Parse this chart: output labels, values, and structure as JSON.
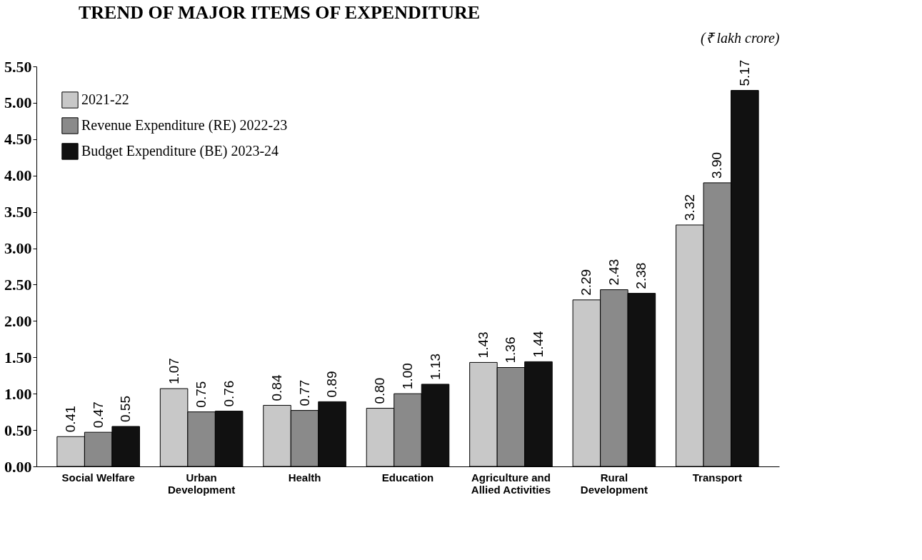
{
  "chart_data": {
    "type": "bar",
    "title": "TREND OF MAJOR ITEMS OF EXPENDITURE",
    "ylabel": "(₹ lakh crore)",
    "categories": [
      "Social Welfare",
      "Urban\nDevelopment",
      "Health",
      "Education",
      "Agriculture and\nAllied Activities",
      "Rural\nDevelopment",
      "Transport"
    ],
    "series": [
      {
        "name": "2021-22",
        "color": "#c8c8c8",
        "values": [
          0.41,
          1.07,
          0.84,
          0.8,
          1.43,
          2.29,
          3.32
        ],
        "value_labels": [
          "0.41",
          "1.07",
          "0.84",
          "0.80",
          "1.43",
          "2.29",
          "3.32"
        ]
      },
      {
        "name": "Revenue Expenditure (RE) 2022-23",
        "color": "#8a8a8a",
        "values": [
          0.47,
          0.75,
          0.77,
          1.0,
          1.36,
          2.43,
          3.9
        ],
        "value_labels": [
          "0.47",
          "0.75",
          "0.77",
          "1.00",
          "1.36",
          "2.43",
          "3.90"
        ]
      },
      {
        "name": "Budget Expenditure (BE) 2023-24",
        "color": "#111111",
        "values": [
          0.55,
          0.76,
          0.89,
          1.13,
          1.44,
          2.38,
          5.17
        ],
        "value_labels": [
          "0.55",
          "0.76",
          "0.89",
          "1.13",
          "1.44",
          "2.38",
          "5.17"
        ]
      }
    ],
    "ylim": [
      0,
      5.5
    ],
    "yticks": [
      {
        "value": 0,
        "label": "0.00"
      },
      {
        "value": 0.5,
        "label": "0.50"
      },
      {
        "value": 1,
        "label": "1.00"
      },
      {
        "value": 1.5,
        "label": "1.50"
      },
      {
        "value": 2,
        "label": "2.00"
      },
      {
        "value": 2.5,
        "label": "2.50"
      },
      {
        "value": 3,
        "label": "3.00"
      },
      {
        "value": 3.5,
        "label": "3.50"
      },
      {
        "value": 4,
        "label": "4.00"
      },
      {
        "value": 4.5,
        "label": "4.50"
      },
      {
        "value": 5,
        "label": "5.00"
      },
      {
        "value": 5.5,
        "label": "5.50"
      }
    ],
    "grid": false,
    "legend": "top left"
  }
}
